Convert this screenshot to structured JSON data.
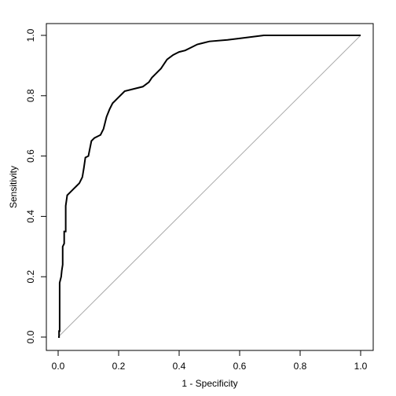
{
  "chart_data": {
    "type": "line",
    "title": "",
    "xlabel": "1 - Specificity",
    "ylabel": "Sensitivity",
    "xlim": [
      0,
      1
    ],
    "ylim": [
      0,
      1
    ],
    "grid": false,
    "x_ticks": [
      "0.0",
      "0.2",
      "0.4",
      "0.6",
      "0.8",
      "1.0"
    ],
    "y_ticks": [
      "0.0",
      "0.2",
      "0.4",
      "0.6",
      "0.8",
      "1.0"
    ],
    "series": [
      {
        "x": [
          0.0,
          0.003,
          0.003,
          0.005,
          0.005,
          0.01,
          0.012,
          0.015,
          0.015,
          0.02,
          0.02,
          0.025,
          0.025,
          0.03,
          0.04,
          0.05,
          0.06,
          0.07,
          0.075,
          0.08,
          0.085,
          0.09,
          0.1,
          0.11,
          0.12,
          0.14,
          0.15,
          0.16,
          0.17,
          0.18,
          0.2,
          0.21,
          0.22,
          0.28,
          0.3,
          0.31,
          0.32,
          0.33,
          0.34,
          0.35,
          0.36,
          0.38,
          0.39,
          0.4,
          0.42,
          0.44,
          0.46,
          0.48,
          0.5,
          0.56,
          0.6,
          0.68,
          1.0
        ],
        "y": [
          0.0,
          0.0,
          0.02,
          0.02,
          0.18,
          0.2,
          0.22,
          0.24,
          0.3,
          0.31,
          0.35,
          0.35,
          0.435,
          0.47,
          0.48,
          0.49,
          0.5,
          0.51,
          0.52,
          0.53,
          0.56,
          0.595,
          0.6,
          0.65,
          0.66,
          0.67,
          0.69,
          0.73,
          0.755,
          0.775,
          0.795,
          0.805,
          0.815,
          0.83,
          0.845,
          0.86,
          0.87,
          0.88,
          0.89,
          0.905,
          0.92,
          0.935,
          0.94,
          0.945,
          0.95,
          0.96,
          0.97,
          0.975,
          0.98,
          0.985,
          0.99,
          1.0,
          1.0
        ]
      }
    ],
    "reference_line": {
      "from": [
        0,
        0
      ],
      "to": [
        1,
        1
      ],
      "color": "#aaaaaa"
    },
    "line_color": "#000000"
  }
}
